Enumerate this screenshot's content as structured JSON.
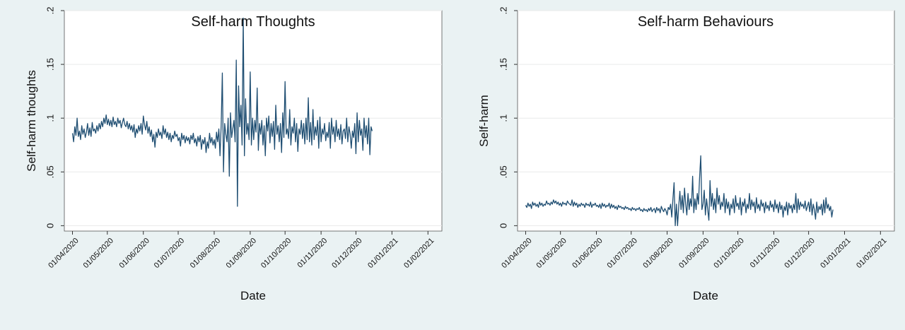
{
  "colors": {
    "background": "#eaf2f3",
    "plot_area": "#ffffff",
    "line": "#1f4e72",
    "grid": "#e9eaea",
    "text": "#111111"
  },
  "chart_data": [
    {
      "type": "line",
      "title": "Self-harm Thoughts",
      "xlabel": "Date",
      "ylabel": "Self-harm thoughts",
      "xlim": [
        "2020-03-25",
        "2021-02-13"
      ],
      "ylim": [
        -0.005,
        0.2
      ],
      "yticks": [
        0,
        0.05,
        0.1,
        0.15,
        0.2
      ],
      "ytick_labels": [
        "0",
        ".05",
        ".1",
        ".15",
        ".2"
      ],
      "xticks": [
        "2020-04-01",
        "2020-05-01",
        "2020-06-01",
        "2020-07-01",
        "2020-08-01",
        "2020-09-01",
        "2020-10-01",
        "2020-11-01",
        "2020-12-01",
        "2021-01-01",
        "2021-02-01"
      ],
      "xtick_labels": [
        "01/04/2020",
        "01/05/2020",
        "01/06/2020",
        "01/07/2020",
        "01/08/2020",
        "01/09/2020",
        "01/10/2020",
        "01/11/2020",
        "01/12/2020",
        "01/01/2021",
        "01/02/2021"
      ],
      "grid": true,
      "series": [
        {
          "start_date": "2020-04-01",
          "step_days": 1,
          "values": [
            0.086,
            0.078,
            0.092,
            0.084,
            0.1,
            0.083,
            0.088,
            0.08,
            0.093,
            0.085,
            0.09,
            0.082,
            0.087,
            0.095,
            0.084,
            0.091,
            0.083,
            0.096,
            0.088,
            0.09,
            0.086,
            0.093,
            0.088,
            0.095,
            0.09,
            0.097,
            0.092,
            0.1,
            0.095,
            0.103,
            0.094,
            0.099,
            0.093,
            0.098,
            0.092,
            0.101,
            0.094,
            0.097,
            0.092,
            0.1,
            0.095,
            0.098,
            0.091,
            0.096,
            0.1,
            0.094,
            0.092,
            0.097,
            0.09,
            0.095,
            0.089,
            0.093,
            0.087,
            0.094,
            0.082,
            0.09,
            0.086,
            0.093,
            0.088,
            0.095,
            0.085,
            0.102,
            0.094,
            0.089,
            0.097,
            0.086,
            0.092,
            0.083,
            0.089,
            0.078,
            0.085,
            0.073,
            0.087,
            0.082,
            0.09,
            0.084,
            0.087,
            0.081,
            0.093,
            0.085,
            0.09,
            0.082,
            0.087,
            0.08,
            0.086,
            0.078,
            0.084,
            0.081,
            0.088,
            0.083,
            0.085,
            0.079,
            0.082,
            0.074,
            0.086,
            0.08,
            0.084,
            0.077,
            0.083,
            0.079,
            0.082,
            0.076,
            0.084,
            0.08,
            0.086,
            0.077,
            0.081,
            0.074,
            0.083,
            0.078,
            0.084,
            0.071,
            0.08,
            0.076,
            0.082,
            0.068,
            0.078,
            0.072,
            0.086,
            0.077,
            0.082,
            0.075,
            0.08,
            0.072,
            0.087,
            0.078,
            0.09,
            0.065,
            0.093,
            0.142,
            0.05,
            0.095,
            0.085,
            0.078,
            0.1,
            0.046,
            0.105,
            0.082,
            0.09,
            0.098,
            0.078,
            0.154,
            0.018,
            0.13,
            0.092,
            0.112,
            0.075,
            0.193,
            0.065,
            0.118,
            0.085,
            0.095,
            0.08,
            0.143,
            0.075,
            0.1,
            0.08,
            0.098,
            0.087,
            0.128,
            0.07,
            0.095,
            0.085,
            0.098,
            0.075,
            0.093,
            0.065,
            0.1,
            0.088,
            0.102,
            0.077,
            0.095,
            0.083,
            0.097,
            0.071,
            0.112,
            0.085,
            0.093,
            0.078,
            0.095,
            0.068,
            0.105,
            0.082,
            0.134,
            0.085,
            0.09,
            0.081,
            0.108,
            0.075,
            0.092,
            0.086,
            0.1,
            0.078,
            0.095,
            0.069,
            0.09,
            0.085,
            0.098,
            0.081,
            0.095,
            0.076,
            0.1,
            0.08,
            0.119,
            0.078,
            0.096,
            0.075,
            0.108,
            0.08,
            0.092,
            0.084,
            0.098,
            0.072,
            0.101,
            0.078,
            0.09,
            0.085,
            0.095,
            0.079,
            0.087,
            0.082,
            0.096,
            0.072,
            0.1,
            0.085,
            0.092,
            0.078,
            0.098,
            0.083,
            0.09,
            0.08,
            0.094,
            0.076,
            0.088,
            0.09,
            0.081,
            0.1,
            0.078,
            0.092,
            0.085,
            0.072,
            0.088,
            0.082,
            0.095,
            0.067,
            0.105,
            0.078,
            0.098,
            0.084,
            0.09,
            0.07,
            0.1,
            0.082,
            0.093,
            0.076,
            0.1,
            0.066,
            0.092,
            0.088
          ]
        }
      ]
    },
    {
      "type": "line",
      "title": "Self-harm Behaviours",
      "xlabel": "Date",
      "ylabel": "Self-harm",
      "xlim": [
        "2020-03-25",
        "2021-02-13"
      ],
      "ylim": [
        -0.005,
        0.2
      ],
      "yticks": [
        0,
        0.05,
        0.1,
        0.15,
        0.2
      ],
      "ytick_labels": [
        "0",
        ".05",
        ".1",
        ".15",
        ".2"
      ],
      "xticks": [
        "2020-04-01",
        "2020-05-01",
        "2020-06-01",
        "2020-07-01",
        "2020-08-01",
        "2020-09-01",
        "2020-10-01",
        "2020-11-01",
        "2020-12-01",
        "2021-01-01",
        "2021-02-01"
      ],
      "xtick_labels": [
        "01/04/2020",
        "01/05/2020",
        "01/06/2020",
        "01/07/2020",
        "01/08/2020",
        "01/09/2020",
        "01/10/2020",
        "01/11/2020",
        "01/12/2020",
        "01/01/2021",
        "01/02/2021"
      ],
      "grid": true,
      "series": [
        {
          "start_date": "2020-04-01",
          "step_days": 1,
          "values": [
            0.019,
            0.017,
            0.021,
            0.018,
            0.02,
            0.016,
            0.022,
            0.019,
            0.021,
            0.018,
            0.02,
            0.017,
            0.022,
            0.019,
            0.021,
            0.018,
            0.02,
            0.019,
            0.023,
            0.02,
            0.021,
            0.019,
            0.022,
            0.02,
            0.024,
            0.021,
            0.023,
            0.02,
            0.022,
            0.019,
            0.021,
            0.018,
            0.022,
            0.02,
            0.021,
            0.019,
            0.023,
            0.021,
            0.02,
            0.019,
            0.024,
            0.018,
            0.022,
            0.019,
            0.021,
            0.017,
            0.02,
            0.018,
            0.021,
            0.019,
            0.02,
            0.017,
            0.021,
            0.019,
            0.02,
            0.018,
            0.022,
            0.017,
            0.02,
            0.019,
            0.021,
            0.018,
            0.019,
            0.017,
            0.02,
            0.016,
            0.021,
            0.018,
            0.02,
            0.017,
            0.019,
            0.018,
            0.021,
            0.016,
            0.02,
            0.017,
            0.019,
            0.016,
            0.018,
            0.015,
            0.019,
            0.017,
            0.018,
            0.016,
            0.017,
            0.015,
            0.018,
            0.016,
            0.017,
            0.015,
            0.016,
            0.014,
            0.017,
            0.015,
            0.016,
            0.014,
            0.016,
            0.015,
            0.017,
            0.014,
            0.015,
            0.013,
            0.016,
            0.014,
            0.015,
            0.013,
            0.016,
            0.014,
            0.017,
            0.013,
            0.015,
            0.016,
            0.012,
            0.017,
            0.014,
            0.016,
            0.012,
            0.018,
            0.015,
            0.013,
            0.016,
            0.014,
            0.01,
            0.017,
            0.015,
            0.02,
            0.008,
            0.025,
            0.04,
            0,
            0.02,
            0,
            0.018,
            0.032,
            0.015,
            0.028,
            0.012,
            0.035,
            0.02,
            0.01,
            0.03,
            0.015,
            0.025,
            0.018,
            0.046,
            0.012,
            0.025,
            0.015,
            0.03,
            0.02,
            0.045,
            0.065,
            0.015,
            0.02,
            0.033,
            0.01,
            0.025,
            0.015,
            0.005,
            0.042,
            0.018,
            0.03,
            0.015,
            0.025,
            0.012,
            0.035,
            0.02,
            0.028,
            0.015,
            0.022,
            0.018,
            0.03,
            0.012,
            0.025,
            0.016,
            0.022,
            0.01,
            0.02,
            0.016,
            0.025,
            0.012,
            0.028,
            0.018,
            0.021,
            0.015,
            0.026,
            0.01,
            0.022,
            0.018,
            0.025,
            0.012,
            0.02,
            0.016,
            0.03,
            0.015,
            0.024,
            0.018,
            0.022,
            0.012,
            0.026,
            0.016,
            0.02,
            0.014,
            0.024,
            0.018,
            0.021,
            0.012,
            0.022,
            0.016,
            0.019,
            0.014,
            0.023,
            0.017,
            0.02,
            0.013,
            0.024,
            0.016,
            0.02,
            0.012,
            0.022,
            0.015,
            0.019,
            0.008,
            0.018,
            0.014,
            0.022,
            0.01,
            0.021,
            0.016,
            0.019,
            0.012,
            0.02,
            0.015,
            0.03,
            0.012,
            0.025,
            0.015,
            0.022,
            0.018,
            0.02,
            0.016,
            0.023,
            0.014,
            0.018,
            0.022,
            0.013,
            0.025,
            0.01,
            0.02,
            0.015,
            0.006,
            0.022,
            0.012,
            0.018,
            0.015,
            0.02,
            0.01,
            0.024,
            0.012,
            0.026,
            0.016,
            0.02,
            0.014,
            0.018,
            0.008,
            0.015
          ]
        }
      ]
    }
  ]
}
